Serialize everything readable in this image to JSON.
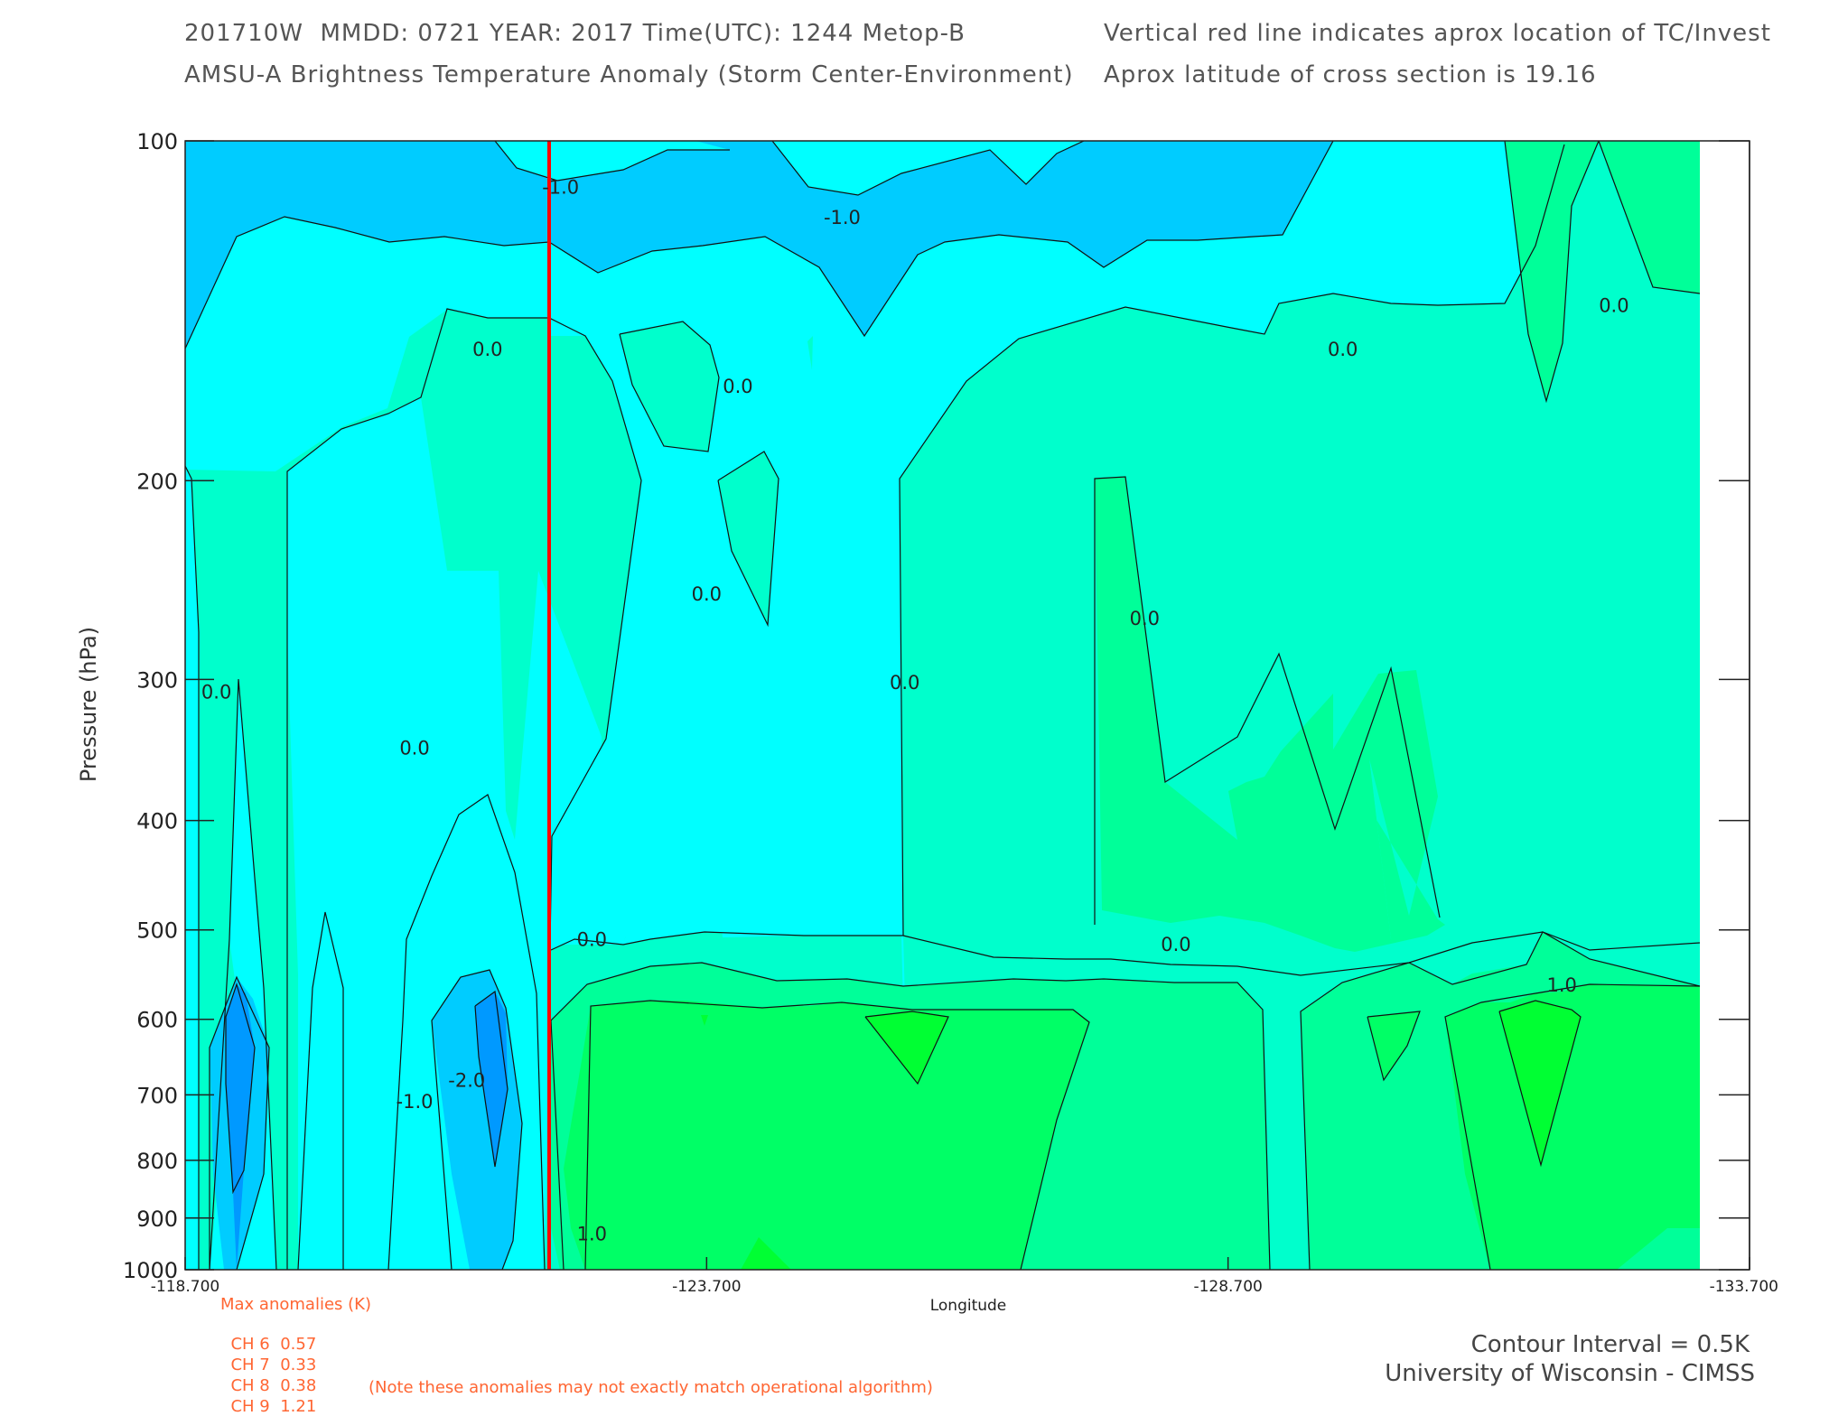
{
  "header": {
    "line1_left": "201710W  MMDD: 0721 YEAR: 2017 Time(UTC): 1244 Metop-B",
    "line2_left": "AMSU-A Brightness Temperature Anomaly (Storm Center-Environment)",
    "line1_right": "Vertical red line indicates aprox location of TC/Invest",
    "line2_right": "Aprox latitude of cross section is 19.16"
  },
  "colors": {
    "blue_lt_minus2": "#0099ff",
    "blue_lt_minus1": "#00ccff",
    "cyan_minus1_0": "#00ffff",
    "teal_0_05": "#00ffcc",
    "green_05_1": "#00ff99",
    "green_1_15": "#00ff66",
    "green_gt_15": "#00ff33",
    "storm_line": "#ff0000",
    "anomaly_text": "#ff6633"
  },
  "chart_data": {
    "type": "heatmap",
    "subtype": "filled-contour cross section",
    "xlabel": "Longitude",
    "ylabel": "Pressure (hPa)",
    "x_ticks": [
      "-118.700",
      "-123.700",
      "-128.700",
      "-133.700"
    ],
    "y_ticks": [
      "100",
      "200",
      "300",
      "400",
      "500",
      "600",
      "700",
      "800",
      "900",
      "1000"
    ],
    "xlim": [
      -118.7,
      -133.7
    ],
    "ylim": [
      1000,
      100
    ],
    "y_scale": "log",
    "storm_longitude": -122.2,
    "contour_interval_K": 0.5,
    "contour_labels": [
      {
        "text": "-1.0",
        "lon": -122.3,
        "p": 110
      },
      {
        "text": "-1.0",
        "lon": -125.0,
        "p": 117
      },
      {
        "text": "0.0",
        "lon": -121.6,
        "p": 153
      },
      {
        "text": "0.0",
        "lon": -124.0,
        "p": 165
      },
      {
        "text": "0.0",
        "lon": -129.8,
        "p": 153
      },
      {
        "text": "0.0",
        "lon": -132.4,
        "p": 140
      },
      {
        "text": "0.0",
        "lon": -123.7,
        "p": 252
      },
      {
        "text": "0.0",
        "lon": -127.9,
        "p": 265
      },
      {
        "text": "0.0",
        "lon": -125.6,
        "p": 302
      },
      {
        "text": "0.0",
        "lon": -119.0,
        "p": 308
      },
      {
        "text": "0.0",
        "lon": -120.9,
        "p": 345
      },
      {
        "text": "0.0",
        "lon": -122.6,
        "p": 510
      },
      {
        "text": "0.0",
        "lon": -128.2,
        "p": 515
      },
      {
        "text": "1.0",
        "lon": -131.9,
        "p": 560
      },
      {
        "text": "-1.0",
        "lon": -120.9,
        "p": 710
      },
      {
        "text": "-2.0",
        "lon": -121.4,
        "p": 680
      },
      {
        "text": "1.0",
        "lon": -122.6,
        "p": 930
      }
    ]
  },
  "anomalies": {
    "title": "Max anomalies (K)",
    "rows": [
      {
        "ch": "CH 6",
        "val": "0.57"
      },
      {
        "ch": "CH 7",
        "val": "0.33"
      },
      {
        "ch": "CH 8",
        "val": "0.38"
      },
      {
        "ch": "CH 9",
        "val": "1.21"
      }
    ],
    "note": "(Note these anomalies may not exactly match operational algorithm)"
  },
  "footer": {
    "contour_interval": "Contour Interval = 0.5K",
    "institution": "University of Wisconsin - CIMSS"
  }
}
